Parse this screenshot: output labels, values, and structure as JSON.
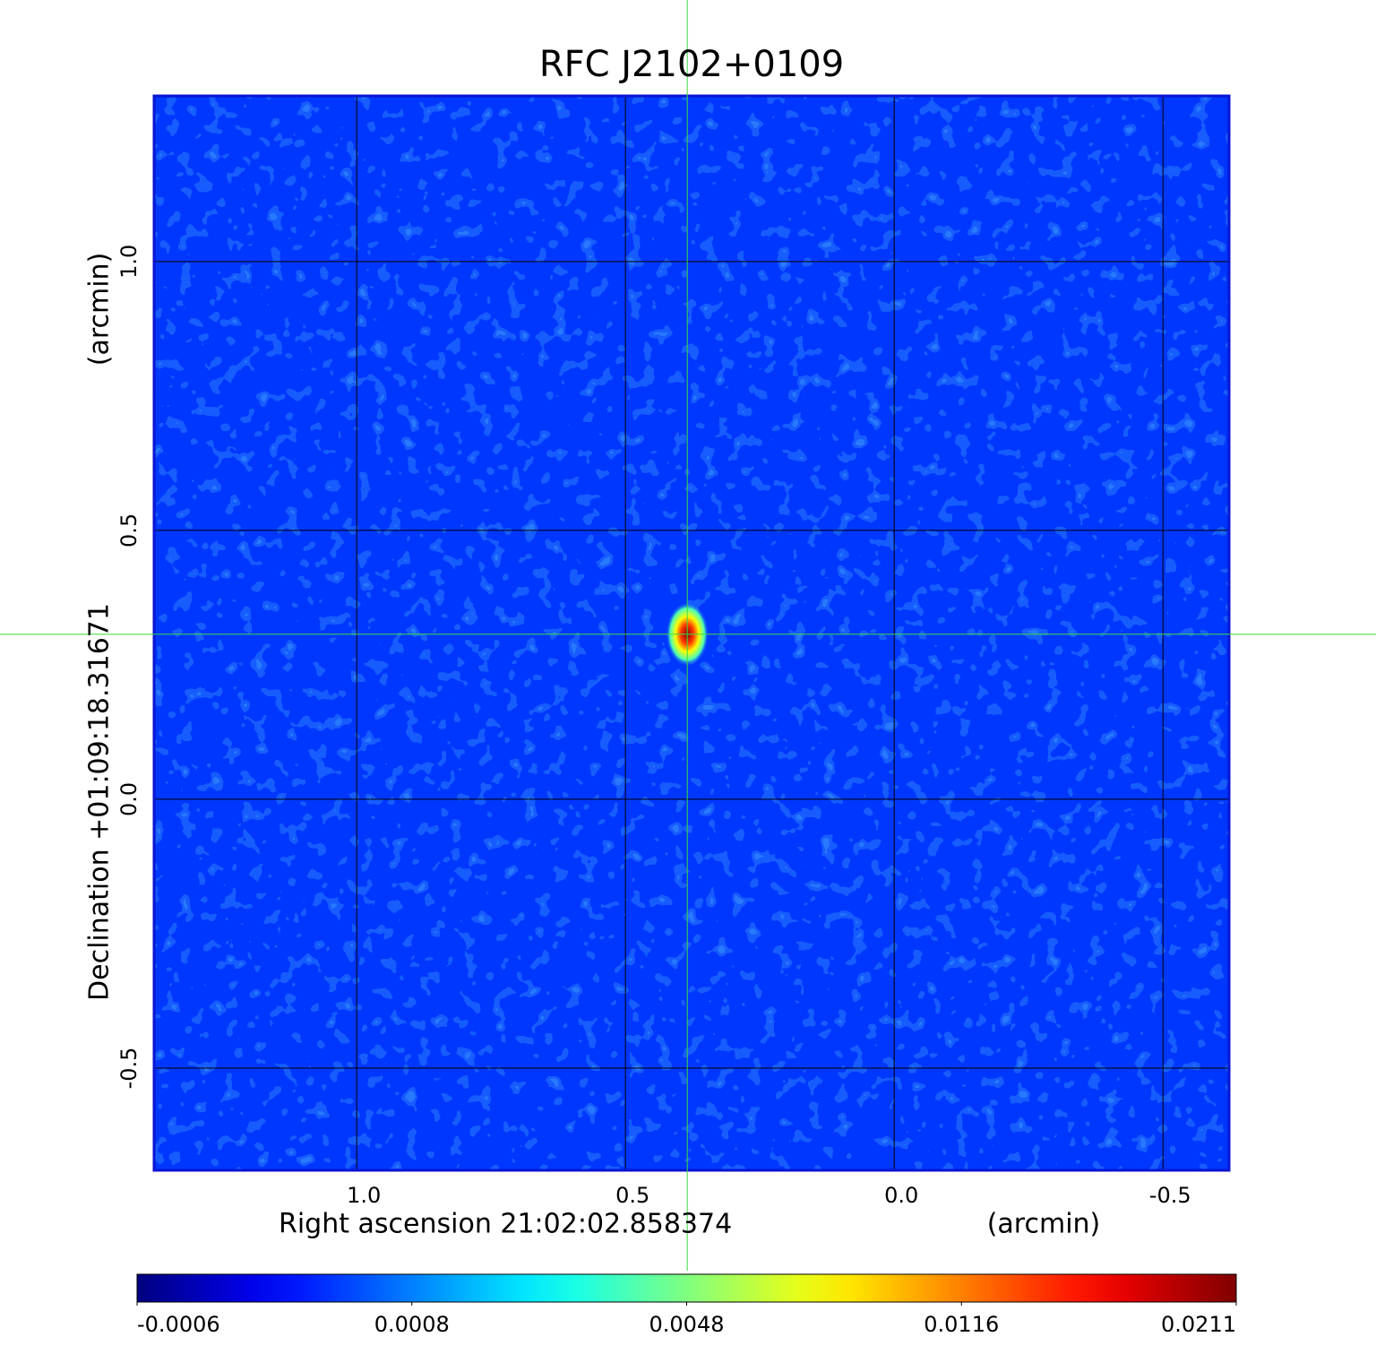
{
  "chart_data": {
    "type": "image",
    "title": "RFC J2102+0109",
    "x_label": "Right ascension  21:02:02.858374",
    "x_unit": "(arcmin)",
    "y_label": "Declination  +01:09:18.31671",
    "y_unit": "(arcmin)",
    "xlim": [
      1.377,
      -0.623
    ],
    "ylim": [
      -0.69,
      1.308
    ],
    "xticks": [
      {
        "value": 1,
        "label": "1.0"
      },
      0.5,
      {
        "value": 0,
        "label": "0.0"
      },
      -0.5
    ],
    "yticks": [
      {
        "value": 1,
        "label": "1.0"
      },
      0.5,
      {
        "value": 0,
        "label": "0.0"
      },
      -0.5
    ],
    "grid": true,
    "colormap": "jet",
    "colorbar_ticks": [
      -0.0006,
      0.0008,
      0.0048,
      0.0116,
      0.0211
    ],
    "background_level": 0.0004,
    "source": {
      "x": 0.385,
      "y": 0.307,
      "peak": 0.0211
    },
    "crosshair": {
      "x": 0.385,
      "y": 0.307,
      "color": "#3ddc3d"
    },
    "title_color": "#1414c8",
    "frame_color": "#0a14d2"
  }
}
